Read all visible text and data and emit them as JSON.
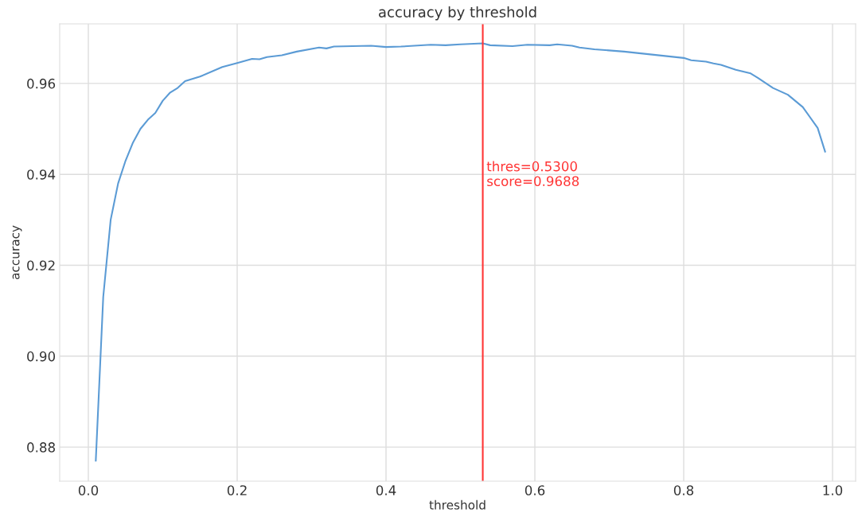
{
  "chart_data": {
    "type": "line",
    "title": "accuracy by threshold",
    "xlabel": "threshold",
    "ylabel": "accuracy",
    "x": [
      0.01,
      0.02,
      0.03,
      0.04,
      0.05,
      0.06,
      0.07,
      0.08,
      0.09,
      0.1,
      0.11,
      0.12,
      0.13,
      0.15,
      0.18,
      0.2,
      0.22,
      0.23,
      0.24,
      0.26,
      0.28,
      0.31,
      0.32,
      0.33,
      0.38,
      0.4,
      0.42,
      0.46,
      0.48,
      0.5,
      0.53,
      0.54,
      0.57,
      0.59,
      0.62,
      0.63,
      0.65,
      0.66,
      0.68,
      0.72,
      0.76,
      0.8,
      0.81,
      0.83,
      0.84,
      0.85,
      0.87,
      0.89,
      0.9,
      0.92,
      0.94,
      0.96,
      0.98,
      0.99
    ],
    "series": [
      {
        "color": "#5b9bd5",
        "values": [
          0.877,
          0.913,
          0.93,
          0.938,
          0.943,
          0.947,
          0.95,
          0.952,
          0.9535,
          0.9562,
          0.958,
          0.959,
          0.9605,
          0.9615,
          0.9636,
          0.9645,
          0.9654,
          0.9653,
          0.9658,
          0.9662,
          0.967,
          0.9679,
          0.9677,
          0.9681,
          0.9683,
          0.968,
          0.9681,
          0.9685,
          0.9684,
          0.9686,
          0.9688,
          0.9684,
          0.9682,
          0.9685,
          0.9684,
          0.9686,
          0.9683,
          0.9679,
          0.9675,
          0.967,
          0.9663,
          0.9656,
          0.9651,
          0.9648,
          0.9644,
          0.9641,
          0.963,
          0.9622,
          0.9612,
          0.959,
          0.9575,
          0.9548,
          0.9502,
          0.945
        ]
      }
    ],
    "xlim": [
      -0.0385,
      1.031
    ],
    "ylim": [
      0.8725,
      0.9731
    ],
    "xticks": [
      {
        "value": 0.0,
        "label": "0.0"
      },
      0.2,
      0.4,
      0.6,
      0.8,
      {
        "value": 1.0,
        "label": "1.0"
      }
    ],
    "yticks": [
      0.88,
      {
        "value": 0.9,
        "label": "0.90"
      },
      0.92,
      0.94,
      0.96
    ],
    "grid": true,
    "ref_lines": [
      {
        "axis": "x",
        "value": 0.53,
        "color": "#ff3333",
        "label": "thres=0.5300\nscore=0.9688"
      }
    ]
  }
}
